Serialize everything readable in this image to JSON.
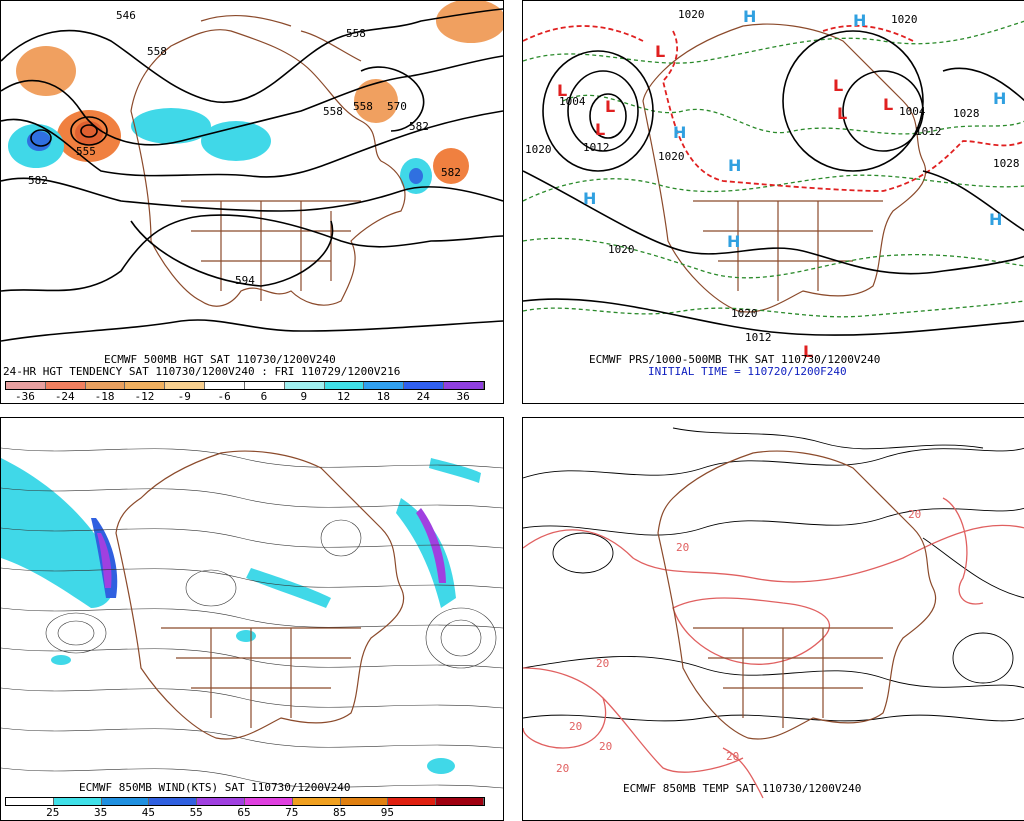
{
  "panels": {
    "p1": {
      "caption1": "ECMWF 500MB HGT SAT 110730/1200V240",
      "caption2": "24-HR HGT TENDENCY SAT 110730/1200V240 : FRI 110729/1200V216",
      "contour_labels": [
        "546",
        "558",
        "558",
        "558",
        "558",
        "570",
        "582",
        "582",
        "582",
        "594",
        "555"
      ],
      "legend": {
        "ticks": [
          "-36",
          "-24",
          "-18",
          "-12",
          "-9",
          "-6",
          "6",
          "9",
          "12",
          "18",
          "24",
          "36"
        ],
        "colors": [
          "#e8a0a0",
          "#f08060",
          "#e8a060",
          "#f0b060",
          "#f8d090",
          "#ffffff",
          "#ffffff",
          "#a0f0f0",
          "#40e0e8",
          "#30a0f0",
          "#3060f0",
          "#9040e0"
        ]
      }
    },
    "p2": {
      "caption1": "ECMWF PRS/1000-500MB THK SAT 110730/1200V240",
      "caption2": "INITIAL TIME = 110720/1200F240",
      "pressure_labels": [
        "1020",
        "1020",
        "1004",
        "1012",
        "1020",
        "1004",
        "1012",
        "1028",
        "1020",
        "1028",
        "1020",
        "1020",
        "1012"
      ],
      "centers": [
        "L",
        "L",
        "L",
        "L",
        "L",
        "L",
        "L",
        "L",
        "H",
        "H",
        "H",
        "H",
        "H",
        "H",
        "H",
        "H"
      ]
    },
    "p3": {
      "caption1": "ECMWF 850MB WIND(KTS) SAT 110730/1200V240",
      "legend": {
        "ticks": [
          "25",
          "35",
          "45",
          "55",
          "65",
          "75",
          "85",
          "95"
        ],
        "colors": [
          "#ffffff",
          "#40e0e8",
          "#2090e0",
          "#3060e0",
          "#a040e0",
          "#e040e0",
          "#f0a020",
          "#e08010",
          "#e02010",
          "#a00010"
        ]
      }
    },
    "p4": {
      "caption1": "ECMWF 850MB TEMP SAT 110730/1200V240",
      "temp_labels": [
        "20",
        "20",
        "20",
        "20",
        "20",
        "20",
        "20"
      ]
    }
  },
  "colors": {
    "coast": "#8b4a2b",
    "contour": "#000000",
    "thickness": "#2a8a2a",
    "thickness540": "#e02020",
    "low": "#e02020",
    "high": "#30a0e0",
    "templine": "#e06060"
  }
}
